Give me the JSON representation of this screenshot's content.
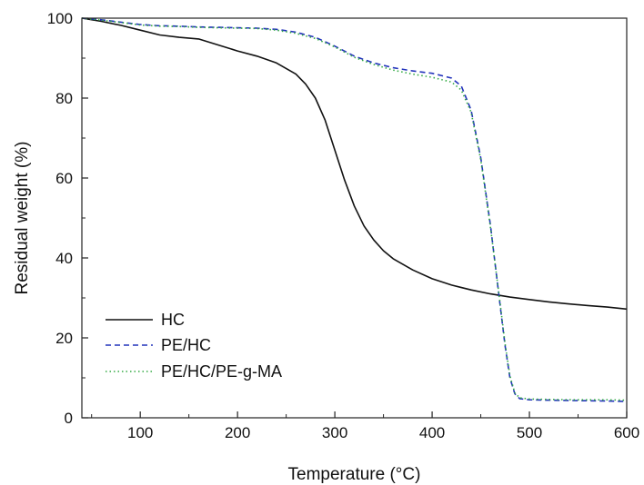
{
  "chart_data": {
    "type": "line",
    "xlabel": "Temperature (°C)",
    "ylabel": "Residual weight (%)",
    "xlim": [
      40,
      600
    ],
    "ylim": [
      0,
      100
    ],
    "x_ticks": [
      100,
      200,
      300,
      400,
      500,
      600
    ],
    "y_ticks": [
      0,
      20,
      40,
      60,
      80,
      100
    ],
    "grid": false,
    "legend_position": "bottom-left",
    "series": [
      {
        "name": "HC",
        "color": "#111111",
        "style": "solid",
        "x": [
          40,
          60,
          80,
          100,
          120,
          140,
          160,
          180,
          200,
          220,
          240,
          260,
          270,
          280,
          290,
          300,
          310,
          320,
          330,
          340,
          350,
          360,
          380,
          400,
          420,
          440,
          460,
          480,
          500,
          520,
          540,
          560,
          580,
          600
        ],
        "y": [
          100,
          99.2,
          98.2,
          97.0,
          95.8,
          95.2,
          94.8,
          93.3,
          91.8,
          90.5,
          88.8,
          86.0,
          83.5,
          80.0,
          74.5,
          67.0,
          59.5,
          53.0,
          48.0,
          44.5,
          41.8,
          39.8,
          37.0,
          34.8,
          33.2,
          32.0,
          31.0,
          30.2,
          29.6,
          29.0,
          28.5,
          28.1,
          27.7,
          27.2
        ]
      },
      {
        "name": "PE/HC",
        "color": "#2233bb",
        "style": "dashed",
        "x": [
          40,
          60,
          80,
          100,
          120,
          140,
          160,
          180,
          200,
          220,
          240,
          260,
          280,
          300,
          320,
          340,
          360,
          380,
          400,
          420,
          430,
          440,
          450,
          460,
          470,
          475,
          480,
          485,
          490,
          500,
          520,
          550,
          580,
          600
        ],
        "y": [
          100,
          99.6,
          99.0,
          98.4,
          98.1,
          98.0,
          97.8,
          97.7,
          97.6,
          97.5,
          97.2,
          96.5,
          95.2,
          93.0,
          90.5,
          88.8,
          87.6,
          86.8,
          86.2,
          85.0,
          83.0,
          77.0,
          65.0,
          48.0,
          28.0,
          18.0,
          10.0,
          6.0,
          4.8,
          4.5,
          4.4,
          4.3,
          4.2,
          4.1
        ]
      },
      {
        "name": "PE/HC/PE-g-MA",
        "color": "#33aa44",
        "style": "dotted",
        "x": [
          40,
          60,
          80,
          100,
          120,
          140,
          160,
          180,
          200,
          220,
          240,
          260,
          280,
          300,
          320,
          340,
          360,
          380,
          400,
          420,
          430,
          440,
          450,
          460,
          470,
          475,
          480,
          485,
          490,
          500,
          520,
          550,
          580,
          600
        ],
        "y": [
          100,
          99.5,
          98.9,
          98.3,
          98.0,
          97.9,
          97.7,
          97.6,
          97.5,
          97.4,
          97.0,
          96.2,
          94.9,
          92.8,
          90.2,
          88.4,
          87.0,
          86.0,
          85.2,
          84.0,
          82.0,
          76.5,
          64.5,
          47.5,
          28.5,
          18.5,
          10.5,
          6.2,
          5.0,
          4.7,
          4.6,
          4.5,
          4.5,
          4.4
        ]
      }
    ]
  }
}
